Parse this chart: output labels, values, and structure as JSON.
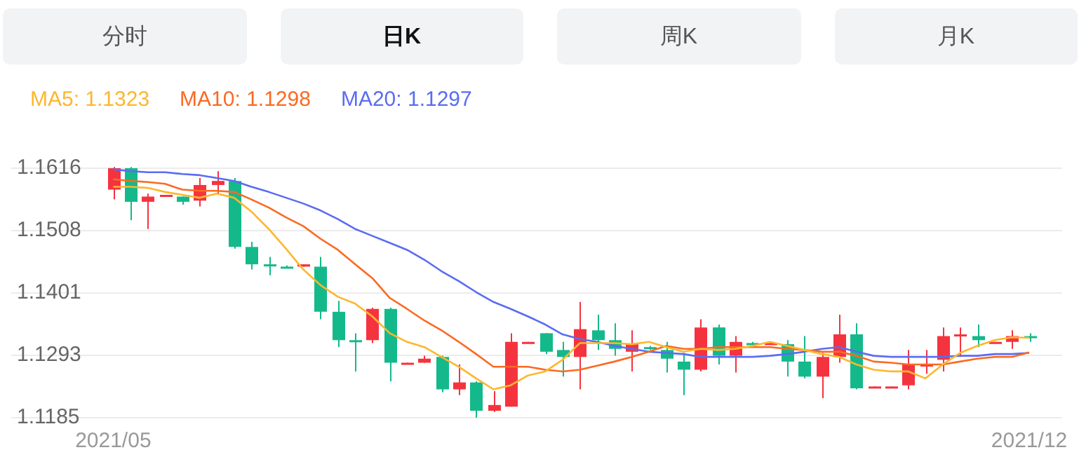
{
  "chart_data": {
    "type": "candlestick",
    "annotations": [
      "分时",
      "日K",
      "周K",
      "月K"
    ],
    "categories": [
      "2021/05",
      null,
      null,
      null,
      null,
      null,
      null,
      null,
      null,
      null,
      null,
      null,
      null,
      null,
      null,
      null,
      null,
      null,
      null,
      null,
      null,
      null,
      null,
      null,
      null,
      null,
      null,
      null,
      null,
      null,
      null,
      null,
      null,
      null,
      null,
      null,
      null,
      null,
      null,
      null,
      null,
      null,
      null,
      null,
      null,
      null,
      null,
      null,
      null,
      null,
      null,
      null,
      null,
      "2021/12"
    ],
    "ohlc": [
      [
        1.1579,
        1.1618,
        1.1562,
        1.1616
      ],
      [
        1.1616,
        1.1618,
        1.1526,
        1.1558
      ],
      [
        1.1558,
        1.1572,
        1.1511,
        1.1567
      ],
      [
        1.1567,
        1.157,
        1.1567,
        1.157
      ],
      [
        1.1567,
        1.1567,
        1.1553,
        1.1558
      ],
      [
        1.156,
        1.1599,
        1.155,
        1.1587
      ],
      [
        1.1587,
        1.1611,
        1.157,
        1.1594
      ],
      [
        1.1594,
        1.1599,
        1.1477,
        1.148
      ],
      [
        1.148,
        1.1489,
        1.1441,
        1.145
      ],
      [
        1.145,
        1.1463,
        1.1431,
        1.1448
      ],
      [
        1.1446,
        1.1448,
        1.1443,
        1.1446
      ],
      [
        1.1446,
        1.145,
        1.1446,
        1.145
      ],
      [
        1.1446,
        1.1463,
        1.1355,
        1.1368
      ],
      [
        1.1368,
        1.1387,
        1.1307,
        1.1319
      ],
      [
        1.1319,
        1.1331,
        1.1265,
        1.1316
      ],
      [
        1.1319,
        1.1375,
        1.1314,
        1.1373
      ],
      [
        1.1373,
        1.1375,
        1.1248,
        1.128
      ],
      [
        1.1277,
        1.128,
        1.1277,
        1.128
      ],
      [
        1.128,
        1.1292,
        1.128,
        1.1287
      ],
      [
        1.129,
        1.1292,
        1.1229,
        1.1234
      ],
      [
        1.1234,
        1.1277,
        1.1224,
        1.1246
      ],
      [
        1.1246,
        1.1248,
        1.1185,
        1.1197
      ],
      [
        1.1197,
        1.1231,
        1.1195,
        1.1207
      ],
      [
        1.1204,
        1.1331,
        1.1204,
        1.1316
      ],
      [
        1.1314,
        1.1316,
        1.1314,
        1.1316
      ],
      [
        1.1331,
        1.1331,
        1.1295,
        1.1299
      ],
      [
        1.1302,
        1.1316,
        1.1256,
        1.129
      ],
      [
        1.129,
        1.1385,
        1.1234,
        1.1338
      ],
      [
        1.1336,
        1.1363,
        1.1302,
        1.1319
      ],
      [
        1.1319,
        1.1348,
        1.1292,
        1.1304
      ],
      [
        1.1299,
        1.1336,
        1.1265,
        1.1312
      ],
      [
        1.1307,
        1.1309,
        1.1302,
        1.1304
      ],
      [
        1.1302,
        1.1316,
        1.1263,
        1.1287
      ],
      [
        1.1282,
        1.1297,
        1.1224,
        1.1268
      ],
      [
        1.1268,
        1.1355,
        1.1265,
        1.1341
      ],
      [
        1.1341,
        1.1346,
        1.1277,
        1.1292
      ],
      [
        1.1292,
        1.1326,
        1.1263,
        1.1316
      ],
      [
        1.1314,
        1.1316,
        1.1309,
        1.1312
      ],
      [
        1.1312,
        1.1314,
        1.1312,
        1.1314
      ],
      [
        1.1312,
        1.1319,
        1.1256,
        1.1282
      ],
      [
        1.1282,
        1.1326,
        1.1253,
        1.1256
      ],
      [
        1.1256,
        1.1297,
        1.1219,
        1.129
      ],
      [
        1.129,
        1.1363,
        1.128,
        1.1329
      ],
      [
        1.1329,
        1.1348,
        1.1234,
        1.1236
      ],
      [
        1.1236,
        1.1239,
        1.1236,
        1.1239
      ],
      [
        1.1236,
        1.1239,
        1.1236,
        1.1239
      ],
      [
        1.1241,
        1.1302,
        1.1234,
        1.1277
      ],
      [
        1.1275,
        1.1302,
        1.1261,
        1.1277
      ],
      [
        1.1285,
        1.1341,
        1.1265,
        1.1326
      ],
      [
        1.1326,
        1.1341,
        1.129,
        1.1329
      ],
      [
        1.1326,
        1.1346,
        1.1307,
        1.1319
      ],
      [
        1.1314,
        1.1316,
        1.1314,
        1.1316
      ],
      [
        1.1316,
        1.1336,
        1.1304,
        1.1326
      ],
      [
        1.1326,
        1.1331,
        1.1316,
        1.1324
      ]
    ],
    "colors": [
      "#f5333f",
      "#14b98b",
      "#f5333f",
      "#f5333f",
      "#14b98b",
      "#f5333f",
      "#f5333f",
      "#14b98b",
      "#14b98b",
      "#14b98b",
      "#14b98b",
      "#f5333f",
      "#14b98b",
      "#14b98b",
      "#14b98b",
      "#f5333f",
      "#14b98b",
      "#f5333f",
      "#f5333f",
      "#14b98b",
      "#f5333f",
      "#14b98b",
      "#f5333f",
      "#f5333f",
      "#f5333f",
      "#14b98b",
      "#14b98b",
      "#f5333f",
      "#14b98b",
      "#14b98b",
      "#f5333f",
      "#14b98b",
      "#14b98b",
      "#14b98b",
      "#f5333f",
      "#14b98b",
      "#f5333f",
      "#14b98b",
      "#f5333f",
      "#14b98b",
      "#14b98b",
      "#f5333f",
      "#f5333f",
      "#14b98b",
      "#f5333f",
      "#f5333f",
      "#f5333f",
      "#f5333f",
      "#f5333f",
      "#f5333f",
      "#14b98b",
      "#f5333f",
      "#f5333f",
      "#14b98b"
    ],
    "series": [
      {
        "name": "MA5: 1.1323",
        "type": "line",
        "color": "#fdb72d",
        "values": [
          1.1584,
          1.1584,
          1.1582,
          1.1575,
          1.157,
          1.1565,
          1.1572,
          1.1565,
          1.1541,
          1.1511,
          1.1477,
          1.1441,
          1.1414,
          1.1394,
          1.1382,
          1.136,
          1.1331,
          1.1316,
          1.1307,
          1.129,
          1.1273,
          1.1253,
          1.1234,
          1.1241,
          1.1258,
          1.1265,
          1.1285,
          1.1314,
          1.1314,
          1.1314,
          1.1312,
          1.1316,
          1.1307,
          1.1299,
          1.1304,
          1.1302,
          1.1304,
          1.1309,
          1.1316,
          1.1309,
          1.1302,
          1.1295,
          1.129,
          1.1277,
          1.1268,
          1.1265,
          1.1265,
          1.1253,
          1.1277,
          1.1297,
          1.1309,
          1.1319,
          1.1324,
          1.1323
        ]
      },
      {
        "name": "MA10: 1.1298",
        "type": "line",
        "color": "#fb6a22",
        "values": [
          1.1597,
          1.1594,
          1.1592,
          1.1589,
          1.1579,
          1.1577,
          1.1577,
          1.1575,
          1.1562,
          1.1548,
          1.1531,
          1.1516,
          1.1494,
          1.1475,
          1.145,
          1.1426,
          1.1392,
          1.1373,
          1.1353,
          1.1336,
          1.1316,
          1.1295,
          1.1273,
          1.1273,
          1.1273,
          1.1268,
          1.1265,
          1.1268,
          1.1275,
          1.1282,
          1.129,
          1.1299,
          1.1309,
          1.1304,
          1.1304,
          1.1307,
          1.1307,
          1.1307,
          1.1307,
          1.1304,
          1.1302,
          1.1299,
          1.1299,
          1.1292,
          1.1282,
          1.128,
          1.1277,
          1.1277,
          1.1277,
          1.1282,
          1.1287,
          1.129,
          1.129,
          1.1298
        ]
      },
      {
        "name": "MA20: 1.1297",
        "type": "line",
        "color": "#5a6cf3",
        "values": [
          1.1614,
          1.1611,
          1.1609,
          1.1609,
          1.1606,
          1.1604,
          1.1599,
          1.1594,
          1.1584,
          1.1575,
          1.1565,
          1.1555,
          1.1543,
          1.1528,
          1.1511,
          1.1499,
          1.1487,
          1.1475,
          1.1458,
          1.1438,
          1.1421,
          1.1402,
          1.1385,
          1.1373,
          1.136,
          1.1346,
          1.1329,
          1.1321,
          1.1316,
          1.1309,
          1.1304,
          1.1299,
          1.1297,
          1.1295,
          1.129,
          1.129,
          1.129,
          1.129,
          1.1292,
          1.1295,
          1.1299,
          1.1304,
          1.1307,
          1.1299,
          1.1292,
          1.129,
          1.129,
          1.129,
          1.129,
          1.1292,
          1.1292,
          1.1295,
          1.1295,
          1.1297
        ]
      }
    ],
    "ylim": [
      1.1185,
      1.1616
    ],
    "yticks": [
      1.1185,
      1.1293,
      1.1401,
      1.1508,
      1.1616
    ],
    "grid": "y",
    "legend": "top left",
    "marker": "none"
  }
}
